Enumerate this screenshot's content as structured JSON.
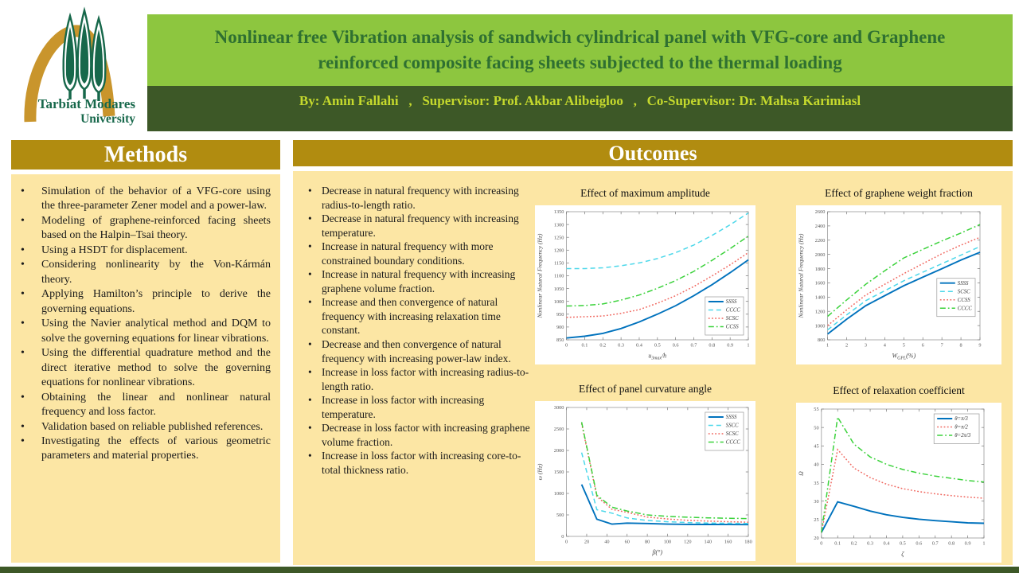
{
  "logo": {
    "line1": "Tarbiat Modares",
    "line2": "University"
  },
  "header": {
    "title": "Nonlinear free Vibration analysis of sandwich cylindrical panel with VFG-core and Graphene reinforced composite facing sheets subjected to the thermal loading",
    "byline": "By: Amin Fallahi   ,   Supervisor: Prof. Akbar Alibeigloo   ,   Co-Supervisor: Dr. Mahsa Karimiasl"
  },
  "methods": {
    "heading": "Methods",
    "items": [
      "Simulation of the behavior of a VFG-core using the three-parameter Zener model and a power-law.",
      "Modeling of graphene-reinforced facing sheets based on the Halpin–Tsai theory.",
      "Using a HSDT for displacement.",
      "Considering nonlinearity by the Von-Kármán theory.",
      "Applying Hamilton’s principle to derive the governing equations.",
      "Using the Navier analytical method and DQM to solve the governing equations for linear vibrations.",
      "Using the differential quadrature method and the direct iterative method to solve the governing equations for nonlinear vibrations.",
      "Obtaining the linear and nonlinear natural frequency and loss factor.",
      "Validation based on reliable published references.",
      "Investigating the effects of various geometric parameters and material properties."
    ]
  },
  "outcomes": {
    "heading": "Outcomes",
    "items": [
      "Decrease in natural frequency with increasing radius-to-length ratio.",
      "Decrease in natural frequency with increasing temperature.",
      "Increase in natural frequency with more constrained boundary conditions.",
      "Increase in natural frequency with increasing graphene volume fraction.",
      "Increase and then convergence of natural frequency with increasing relaxation time constant.",
      "Decrease and then convergence of natural frequency with increasing power-law index.",
      "Increase in loss factor with increasing radius-to-length ratio.",
      "Increase in loss factor with increasing temperature.",
      "Decrease in loss factor with increasing graphene volume fraction.",
      "Increase in loss factor with increasing core-to-total thickness ratio."
    ]
  },
  "colors": {
    "light_green": "#8DC63F",
    "dark_green": "#3D5827",
    "title_text": "#2F7031",
    "byline_text": "#C5D92D",
    "gold": "#B18C10",
    "panel_yellow": "#FCE6A4",
    "logo_green": "#17684B",
    "logo_gold": "#C9952C"
  },
  "chart_data": [
    {
      "type": "line",
      "title": "Effect of maximum amplitude",
      "xlabel": "u_{3max}/h",
      "ylabel": "Nonlinear Natural Frequency (Hz)",
      "xlim": [
        0,
        1
      ],
      "ylim": [
        850,
        1350
      ],
      "xticks": [
        0,
        0.1,
        0.2,
        0.3,
        0.4,
        0.5,
        0.6,
        0.7,
        0.8,
        0.9,
        1
      ],
      "yticks": [
        850,
        900,
        950,
        1000,
        1050,
        1100,
        1150,
        1200,
        1250,
        1300,
        1350
      ],
      "grid": false,
      "legend_pos": "se",
      "x": [
        0,
        0.1,
        0.2,
        0.3,
        0.4,
        0.5,
        0.6,
        0.7,
        0.8,
        0.9,
        1
      ],
      "series": [
        {
          "name": "SSSS",
          "color": "#0072BD",
          "style": "solid",
          "values": [
            857,
            864,
            875,
            894,
            920,
            950,
            983,
            1022,
            1065,
            1112,
            1162
          ]
        },
        {
          "name": "CCCC",
          "color": "#4DD8EA",
          "style": "dashed",
          "values": [
            1128,
            1128,
            1131,
            1139,
            1150,
            1167,
            1190,
            1220,
            1257,
            1299,
            1345
          ]
        },
        {
          "name": "SCSC",
          "color": "#F0665E",
          "style": "dotted",
          "values": [
            938,
            940,
            943,
            953,
            968,
            993,
            1022,
            1058,
            1099,
            1143,
            1190
          ]
        },
        {
          "name": "CCSS",
          "color": "#3BD23B",
          "style": "dashdot",
          "values": [
            982,
            984,
            990,
            1005,
            1025,
            1051,
            1081,
            1117,
            1160,
            1206,
            1255
          ]
        }
      ]
    },
    {
      "type": "line",
      "title": "Effect of graphene weight fraction",
      "xlabel": "W_{GPL}(%)",
      "ylabel": "Nonlinear Natural Frequency (Hz)",
      "xlim": [
        1,
        9
      ],
      "ylim": [
        800,
        2600
      ],
      "xticks": [
        1,
        2,
        3,
        4,
        5,
        6,
        7,
        8,
        9
      ],
      "yticks": [
        800,
        1000,
        1200,
        1400,
        1600,
        1800,
        2000,
        2200,
        2400,
        2600
      ],
      "grid": false,
      "legend_pos": "e",
      "x": [
        1,
        2,
        3,
        4,
        5,
        6,
        7,
        8,
        9
      ],
      "series": [
        {
          "name": "SSSS",
          "color": "#0072BD",
          "style": "solid",
          "values": [
            880,
            1090,
            1280,
            1420,
            1560,
            1680,
            1800,
            1920,
            2030
          ]
        },
        {
          "name": "SCSC",
          "color": "#4DD8EA",
          "style": "dashed",
          "values": [
            940,
            1150,
            1350,
            1490,
            1630,
            1750,
            1870,
            1990,
            2110
          ]
        },
        {
          "name": "CCSS",
          "color": "#F0665E",
          "style": "dotted",
          "values": [
            1000,
            1220,
            1430,
            1580,
            1730,
            1870,
            2010,
            2130,
            2240
          ]
        },
        {
          "name": "CCCC",
          "color": "#3BD23B",
          "style": "dashdot",
          "values": [
            1130,
            1360,
            1580,
            1770,
            1950,
            2070,
            2190,
            2300,
            2420
          ]
        }
      ]
    },
    {
      "type": "line",
      "title": "Effect of panel curvature angle",
      "xlabel": "β(°)",
      "ylabel": "ω (Hz)",
      "xlim": [
        0,
        180
      ],
      "ylim": [
        0,
        3000
      ],
      "xticks": [
        0,
        20,
        40,
        60,
        80,
        100,
        120,
        140,
        160,
        180
      ],
      "yticks": [
        0,
        500,
        1000,
        1500,
        2000,
        2500,
        3000
      ],
      "grid": false,
      "legend_pos": "ne",
      "x": [
        15,
        30,
        45,
        60,
        80,
        100,
        120,
        140,
        160,
        180
      ],
      "series": [
        {
          "name": "SSSS",
          "color": "#0072BD",
          "style": "solid",
          "values": [
            1210,
            400,
            285,
            310,
            300,
            285,
            280,
            278,
            276,
            275
          ]
        },
        {
          "name": "SSCC",
          "color": "#4DD8EA",
          "style": "dashed",
          "values": [
            1950,
            620,
            540,
            430,
            370,
            340,
            322,
            312,
            305,
            300
          ]
        },
        {
          "name": "SCSC",
          "color": "#F0665E",
          "style": "dotted",
          "values": [
            2630,
            930,
            630,
            560,
            450,
            405,
            375,
            355,
            342,
            330
          ]
        },
        {
          "name": "CCCC",
          "color": "#3BD23B",
          "style": "dashdot",
          "values": [
            2660,
            960,
            680,
            590,
            500,
            467,
            447,
            432,
            422,
            415
          ]
        }
      ]
    },
    {
      "type": "line",
      "title": "Effect of relaxation coefficient",
      "xlabel": "ζ",
      "ylabel": "Ω",
      "xlim": [
        0,
        1
      ],
      "ylim": [
        20,
        55
      ],
      "xticks": [
        0,
        0.1,
        0.2,
        0.3,
        0.4,
        0.5,
        0.6,
        0.7,
        0.8,
        0.9,
        1
      ],
      "yticks": [
        20,
        25,
        30,
        35,
        40,
        45,
        50,
        55
      ],
      "grid": false,
      "legend_pos": "ne",
      "x": [
        0,
        0.1,
        0.2,
        0.3,
        0.4,
        0.5,
        0.6,
        0.7,
        0.8,
        0.9,
        1
      ],
      "series": [
        {
          "name": "θ=π/3",
          "color": "#0072BD",
          "style": "solid",
          "values": [
            21.5,
            29.8,
            28.6,
            27.3,
            26.3,
            25.6,
            25.1,
            24.7,
            24.4,
            24.1,
            24.0
          ]
        },
        {
          "name": "θ=π/2",
          "color": "#F0665E",
          "style": "dotted",
          "values": [
            21.5,
            44.0,
            39.0,
            36.4,
            34.6,
            33.4,
            32.6,
            32.0,
            31.5,
            31.1,
            30.8
          ]
        },
        {
          "name": "θ=2π/3",
          "color": "#3BD23B",
          "style": "dashdot",
          "values": [
            21.5,
            52.8,
            45.5,
            42.0,
            40.0,
            38.6,
            37.6,
            36.8,
            36.2,
            35.6,
            35.2
          ]
        }
      ]
    }
  ]
}
